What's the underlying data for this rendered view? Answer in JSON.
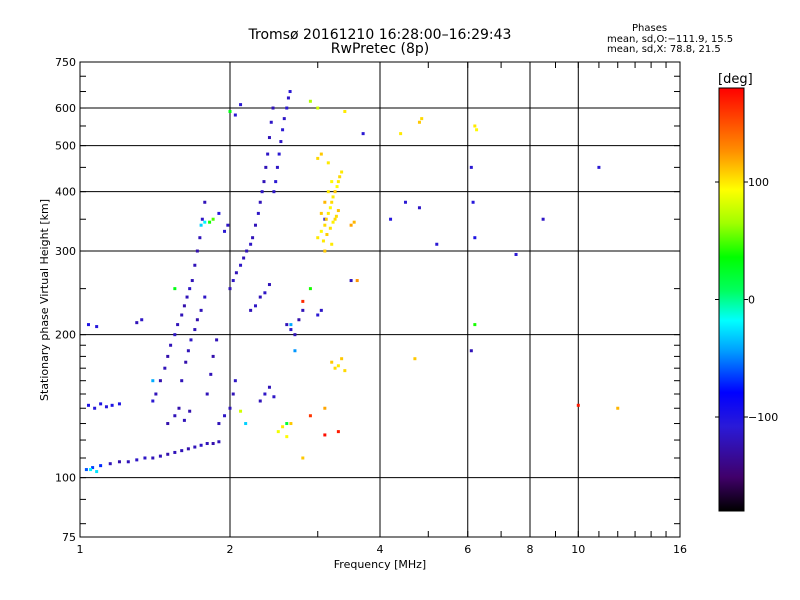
{
  "title_line1": "Tromsø 20161210 16:28:00–16:29:43",
  "title_line2": "RwPretec (8p)",
  "stats": {
    "title": "Phases",
    "o_line": "mean, sd,O:−111.9, 15.5",
    "x_line": "mean, sd,X: 78.8, 21.5"
  },
  "chart_data": {
    "type": "scatter",
    "xlabel": "Frequency [MHz]",
    "ylabel": "Stationary phase Virtual Height [km]",
    "xscale": "log",
    "yscale": "log",
    "xlim": [
      1,
      16
    ],
    "ylim": [
      75,
      750
    ],
    "x_ticks": [
      1,
      2,
      4,
      6,
      8,
      10,
      16
    ],
    "x_tick_labels": [
      "1",
      "2",
      "4",
      "6",
      "8",
      "10",
      "16"
    ],
    "y_ticks": [
      75,
      100,
      200,
      300,
      400,
      500,
      600,
      750
    ],
    "y_tick_labels": [
      "75",
      "100",
      "200",
      "300",
      "400",
      "500",
      "600",
      "750"
    ],
    "grid": true,
    "colorbar": {
      "label": "[deg]",
      "range": [
        -180,
        180
      ],
      "ticks": [
        100,
        0,
        -100
      ],
      "tick_labels": [
        "100",
        "0",
        "−100"
      ]
    },
    "series": [
      {
        "points": [
          [
            1.03,
            104,
            -60
          ],
          [
            1.06,
            105,
            -65
          ],
          [
            1.1,
            106,
            -70
          ],
          [
            1.15,
            107,
            -120
          ],
          [
            1.2,
            108,
            -125
          ],
          [
            1.25,
            108,
            -120
          ],
          [
            1.3,
            109,
            -115
          ],
          [
            1.35,
            110,
            -115
          ],
          [
            1.4,
            110,
            -120
          ],
          [
            1.45,
            111,
            -120
          ],
          [
            1.5,
            112,
            -125
          ],
          [
            1.55,
            113,
            -120
          ],
          [
            1.6,
            114,
            -120
          ],
          [
            1.65,
            115,
            -125
          ],
          [
            1.7,
            116,
            -120
          ],
          [
            1.75,
            117,
            -115
          ],
          [
            1.8,
            118,
            -120
          ],
          [
            1.85,
            118,
            -125
          ],
          [
            1.9,
            119,
            -120
          ],
          [
            1.04,
            142,
            -100
          ],
          [
            1.07,
            140,
            -105
          ],
          [
            1.1,
            143,
            -100
          ],
          [
            1.13,
            141,
            -105
          ],
          [
            1.16,
            142,
            -100
          ],
          [
            1.2,
            143,
            -100
          ],
          [
            1.04,
            210,
            -100
          ],
          [
            1.08,
            208,
            -105
          ],
          [
            1.3,
            212,
            -120
          ],
          [
            1.33,
            215,
            -115
          ],
          [
            1.4,
            145,
            -110
          ],
          [
            1.42,
            150,
            -120
          ],
          [
            1.45,
            160,
            -125
          ],
          [
            1.48,
            170,
            -120
          ],
          [
            1.5,
            180,
            -125
          ],
          [
            1.52,
            190,
            -120
          ],
          [
            1.55,
            200,
            -115
          ],
          [
            1.57,
            210,
            -120
          ],
          [
            1.6,
            220,
            -120
          ],
          [
            1.62,
            230,
            -125
          ],
          [
            1.64,
            240,
            -120
          ],
          [
            1.66,
            250,
            -115
          ],
          [
            1.68,
            260,
            -120
          ],
          [
            1.7,
            280,
            -120
          ],
          [
            1.72,
            300,
            -125
          ],
          [
            1.74,
            320,
            -120
          ],
          [
            1.76,
            350,
            -115
          ],
          [
            1.78,
            380,
            -120
          ],
          [
            1.6,
            160,
            -120
          ],
          [
            1.63,
            175,
            -125
          ],
          [
            1.65,
            185,
            -120
          ],
          [
            1.67,
            195,
            -115
          ],
          [
            1.7,
            205,
            -120
          ],
          [
            1.72,
            215,
            -125
          ],
          [
            1.75,
            225,
            -120
          ],
          [
            1.78,
            240,
            -115
          ],
          [
            1.8,
            150,
            -120
          ],
          [
            1.83,
            165,
            -120
          ],
          [
            1.85,
            180,
            -125
          ],
          [
            1.88,
            195,
            -120
          ],
          [
            1.5,
            130,
            -125
          ],
          [
            1.55,
            135,
            -120
          ],
          [
            1.58,
            140,
            -125
          ],
          [
            1.62,
            132,
            -120
          ],
          [
            1.66,
            138,
            -125
          ],
          [
            1.9,
            130,
            -120
          ],
          [
            1.95,
            135,
            -115
          ],
          [
            2.0,
            140,
            -120
          ],
          [
            2.03,
            150,
            -120
          ],
          [
            2.05,
            160,
            -115
          ],
          [
            2.0,
            250,
            -120
          ],
          [
            2.03,
            260,
            -115
          ],
          [
            2.06,
            270,
            -120
          ],
          [
            2.1,
            280,
            -115
          ],
          [
            2.13,
            290,
            -120
          ],
          [
            2.16,
            300,
            -120
          ],
          [
            2.2,
            310,
            -115
          ],
          [
            2.22,
            320,
            -120
          ],
          [
            2.25,
            340,
            -120
          ],
          [
            2.28,
            360,
            -115
          ],
          [
            2.3,
            380,
            -120
          ],
          [
            2.32,
            400,
            -115
          ],
          [
            2.34,
            420,
            -120
          ],
          [
            2.36,
            450,
            -120
          ],
          [
            2.38,
            480,
            -115
          ],
          [
            2.4,
            520,
            -120
          ],
          [
            2.42,
            560,
            -115
          ],
          [
            2.44,
            600,
            -120
          ],
          [
            2.45,
            400,
            -115
          ],
          [
            2.47,
            420,
            -110
          ],
          [
            2.49,
            450,
            -115
          ],
          [
            2.51,
            480,
            -110
          ],
          [
            2.53,
            510,
            -115
          ],
          [
            2.55,
            540,
            -110
          ],
          [
            2.57,
            570,
            -115
          ],
          [
            2.6,
            600,
            -110
          ],
          [
            2.62,
            630,
            -115
          ],
          [
            2.64,
            650,
            -110
          ],
          [
            1.95,
            330,
            -110
          ],
          [
            1.98,
            340,
            -115
          ],
          [
            1.9,
            360,
            -105
          ],
          [
            2.05,
            580,
            -110
          ],
          [
            2.1,
            610,
            -110
          ],
          [
            2.2,
            225,
            -120
          ],
          [
            2.25,
            230,
            -115
          ],
          [
            2.3,
            240,
            -120
          ],
          [
            2.35,
            245,
            -115
          ],
          [
            2.4,
            255,
            -120
          ],
          [
            2.6,
            210,
            -120
          ],
          [
            2.65,
            205,
            -115
          ],
          [
            2.7,
            200,
            -120
          ],
          [
            2.75,
            215,
            -125
          ],
          [
            2.8,
            225,
            -120
          ],
          [
            2.3,
            145,
            -120
          ],
          [
            2.35,
            150,
            -115
          ],
          [
            2.4,
            155,
            -120
          ],
          [
            2.45,
            148,
            -115
          ],
          [
            3.0,
            220,
            -110
          ],
          [
            3.05,
            225,
            -115
          ],
          [
            3.1,
            350,
            -110
          ],
          [
            3.5,
            260,
            -120
          ],
          [
            3.7,
            530,
            -110
          ],
          [
            4.5,
            380,
            -110
          ],
          [
            4.8,
            370,
            -115
          ],
          [
            6.1,
            450,
            -110
          ],
          [
            6.15,
            380,
            -105
          ],
          [
            6.2,
            320,
            -100
          ],
          [
            7.5,
            295,
            -110
          ],
          [
            8.5,
            350,
            -115
          ],
          [
            11.0,
            450,
            -110
          ],
          [
            5.2,
            310,
            -110
          ],
          [
            4.2,
            350,
            -105
          ],
          [
            6.1,
            185,
            -120
          ]
        ]
      },
      {
        "points": [
          [
            3.0,
            320,
            100
          ],
          [
            3.05,
            330,
            95
          ],
          [
            3.1,
            340,
            105
          ],
          [
            3.12,
            350,
            110
          ],
          [
            3.15,
            360,
            100
          ],
          [
            3.18,
            370,
            95
          ],
          [
            3.2,
            380,
            105
          ],
          [
            3.22,
            390,
            100
          ],
          [
            3.25,
            400,
            110
          ],
          [
            3.28,
            410,
            95
          ],
          [
            3.3,
            420,
            100
          ],
          [
            3.32,
            430,
            105
          ],
          [
            3.35,
            440,
            100
          ],
          [
            3.05,
            360,
            110
          ],
          [
            3.1,
            380,
            115
          ],
          [
            3.15,
            400,
            100
          ],
          [
            3.2,
            420,
            95
          ],
          [
            3.25,
            350,
            105
          ],
          [
            3.08,
            315,
            100
          ],
          [
            3.13,
            325,
            108
          ],
          [
            3.18,
            335,
            102
          ],
          [
            3.22,
            345,
            98
          ],
          [
            3.27,
            355,
            104
          ],
          [
            3.3,
            365,
            112
          ],
          [
            3.1,
            300,
            110
          ],
          [
            3.2,
            310,
            100
          ],
          [
            3.0,
            470,
            105
          ],
          [
            3.05,
            480,
            110
          ],
          [
            3.15,
            460,
            100
          ],
          [
            3.2,
            175,
            110
          ],
          [
            3.25,
            170,
            105
          ],
          [
            3.3,
            172,
            100
          ],
          [
            3.35,
            178,
            110
          ],
          [
            3.4,
            168,
            105
          ],
          [
            2.5,
            125,
            90
          ],
          [
            2.55,
            128,
            100
          ],
          [
            2.6,
            122,
            95
          ],
          [
            2.65,
            130,
            110
          ],
          [
            2.9,
            620,
            70
          ],
          [
            3.0,
            600,
            80
          ],
          [
            3.4,
            590,
            100
          ],
          [
            3.5,
            340,
            120
          ],
          [
            3.55,
            345,
            115
          ],
          [
            3.6,
            260,
            125
          ],
          [
            4.4,
            530,
            100
          ],
          [
            4.8,
            560,
            110
          ],
          [
            4.85,
            570,
            105
          ],
          [
            6.2,
            550,
            100
          ],
          [
            6.25,
            540,
            95
          ],
          [
            4.7,
            178,
            110
          ],
          [
            12.0,
            140,
            115
          ],
          [
            3.1,
            140,
            120
          ],
          [
            2.8,
            110,
            110
          ],
          [
            2.1,
            138,
            80
          ]
        ]
      },
      {
        "points": [
          [
            1.05,
            104,
            -20
          ],
          [
            1.08,
            103,
            -25
          ],
          [
            1.4,
            160,
            -40
          ],
          [
            1.75,
            340,
            -30
          ],
          [
            1.78,
            345,
            -20
          ],
          [
            1.82,
            345,
            40
          ],
          [
            1.85,
            350,
            50
          ],
          [
            2.65,
            210,
            -40
          ],
          [
            2.7,
            185,
            -45
          ],
          [
            2.9,
            250,
            40
          ],
          [
            2.0,
            590,
            30
          ],
          [
            2.6,
            130,
            20
          ],
          [
            6.2,
            210,
            40
          ],
          [
            2.15,
            130,
            -30
          ],
          [
            1.55,
            250,
            30
          ]
        ]
      },
      {
        "points": [
          [
            3.3,
            125,
            170
          ],
          [
            2.9,
            135,
            160
          ],
          [
            2.8,
            235,
            165
          ],
          [
            10.0,
            142,
            170
          ],
          [
            3.1,
            123,
            175
          ]
        ]
      }
    ]
  }
}
